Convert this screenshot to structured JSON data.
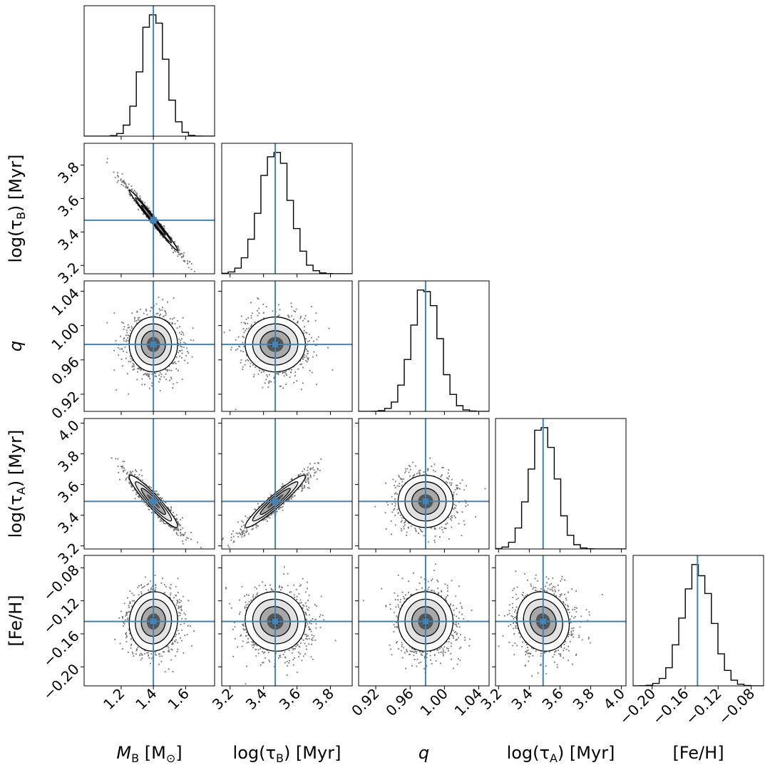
{
  "chart_data": {
    "type": "corner",
    "parameters": [
      {
        "id": "mb",
        "label": "M_B [M_sun]",
        "label_main": "M",
        "label_sub": "B",
        "label_tail": " [M",
        "label_tail_sub": "⊙",
        "label_end": "]",
        "truth": 1.4,
        "range": [
          0.97,
          1.78
        ],
        "ticks": [
          "1.2",
          "1.4",
          "1.6"
        ],
        "tick_values": [
          1.2,
          1.4,
          1.6
        ],
        "mean": 1.4,
        "sigma": 0.075
      },
      {
        "id": "ltb",
        "label": "log(τ_B) [Myr]",
        "label_main": "log(τ",
        "label_sub": "B",
        "label_tail": ") [Myr]",
        "truth": 3.47,
        "range": [
          3.15,
          3.93
        ],
        "ticks": [
          "3.2",
          "3.4",
          "3.6",
          "3.8"
        ],
        "tick_values": [
          3.2,
          3.4,
          3.6,
          3.8
        ],
        "mean": 3.47,
        "sigma": 0.09
      },
      {
        "id": "q",
        "label": "q",
        "label_main": "q",
        "truth": 0.978,
        "range": [
          0.9,
          1.052
        ],
        "ticks": [
          "0.92",
          "0.96",
          "1.00",
          "1.04"
        ],
        "tick_values": [
          0.92,
          0.96,
          1.0,
          1.04
        ],
        "mean": 0.978,
        "sigma": 0.016
      },
      {
        "id": "lta",
        "label": "log(τ_A) [Myr]",
        "label_main": "log(τ",
        "label_sub": "A",
        "label_tail": ") [Myr]",
        "truth": 3.49,
        "range": [
          3.18,
          4.03
        ],
        "ticks": [
          "3.2",
          "3.4",
          "3.6",
          "3.8",
          "4.0"
        ],
        "tick_values": [
          3.2,
          3.4,
          3.6,
          3.8,
          4.0
        ],
        "mean": 3.49,
        "sigma": 0.085
      },
      {
        "id": "feh",
        "label": "[Fe/H]",
        "label_main": "[Fe/H]",
        "truth": -0.145,
        "range": [
          -0.223,
          -0.065
        ],
        "ticks": [
          "−0.20",
          "−0.16",
          "−0.12",
          "−0.08"
        ],
        "tick_values": [
          -0.2,
          -0.16,
          -0.12,
          -0.08
        ],
        "mean": -0.145,
        "sigma": 0.018
      }
    ],
    "correlations": {
      "0_1": -0.99,
      "0_3": -0.94,
      "1_3": 0.95,
      "0_2": 0.0,
      "1_2": 0.0,
      "2_3": 0.0,
      "0_4": 0.05,
      "1_4": -0.05,
      "2_4": 0.0,
      "3_4": -0.1
    },
    "truth_line_color": "#4682b4",
    "histogram_color": "#000000",
    "density_colormap": "greys",
    "contour_levels": [
      "1σ",
      "1.5σ",
      "2σ"
    ]
  }
}
